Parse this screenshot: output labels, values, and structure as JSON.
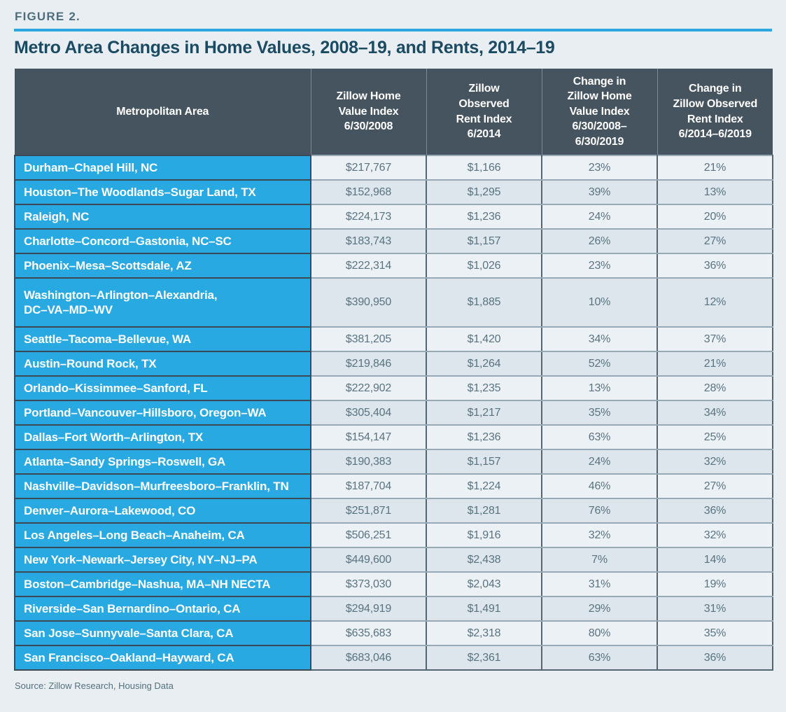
{
  "figure": {
    "label": "FIGURE 2.",
    "title": "Metro Area Changes in Home Values, 2008–19, and Rents, 2014–19"
  },
  "source": "Source: Zillow Research, Housing Data",
  "colors": {
    "accent_blue": "#29a9e1",
    "header_slate": "#46545f",
    "rule_blue": "#2ca7e0",
    "title_navy": "#1b4a63",
    "page_background": "#e9eef2",
    "row_light": "#ebf1f5",
    "row_dark": "#dce6ec",
    "value_text": "#5a7380"
  },
  "chart_data": {
    "type": "table",
    "title": "Metro Area Changes in Home Values, 2008–19, and Rents, 2014–19",
    "columns": [
      "Metropolitan Area",
      "Zillow Home\nValue Index\n6/30/2008",
      "Zillow\nObserved\nRent Index\n6/2014",
      "Change in\nZillow Home\nValue Index\n6/30/2008–\n6/30/2019",
      "Change in\nZillow Observed\nRent Index\n6/2014–6/2019"
    ],
    "rows": [
      [
        "Durham–Chapel Hill, NC",
        "$217,767",
        "$1,166",
        "23%",
        "21%"
      ],
      [
        "Houston–The Woodlands–Sugar Land, TX",
        "$152,968",
        "$1,295",
        "39%",
        "13%"
      ],
      [
        "Raleigh, NC",
        "$224,173",
        "$1,236",
        "24%",
        "20%"
      ],
      [
        "Charlotte–Concord–Gastonia, NC–SC",
        "$183,743",
        "$1,157",
        "26%",
        "27%"
      ],
      [
        "Phoenix–Mesa–Scottsdale, AZ",
        "$222,314",
        "$1,026",
        "23%",
        "36%"
      ],
      [
        "Washington–Arlington–Alexandria,\nDC–VA–MD–WV",
        "$390,950",
        "$1,885",
        "10%",
        "12%"
      ],
      [
        "Seattle–Tacoma–Bellevue, WA",
        "$381,205",
        "$1,420",
        "34%",
        "37%"
      ],
      [
        "Austin–Round Rock, TX",
        "$219,846",
        "$1,264",
        "52%",
        "21%"
      ],
      [
        "Orlando–Kissimmee–Sanford, FL",
        "$222,902",
        "$1,235",
        "13%",
        "28%"
      ],
      [
        "Portland–Vancouver–Hillsboro, Oregon–WA",
        "$305,404",
        "$1,217",
        "35%",
        "34%"
      ],
      [
        "Dallas–Fort Worth–Arlington, TX",
        "$154,147",
        "$1,236",
        "63%",
        "25%"
      ],
      [
        "Atlanta–Sandy Springs–Roswell, GA",
        "$190,383",
        "$1,157",
        "24%",
        "32%"
      ],
      [
        "Nashville–Davidson–Murfreesboro–Franklin, TN",
        "$187,704",
        "$1,224",
        "46%",
        "27%"
      ],
      [
        "Denver–Aurora–Lakewood, CO",
        "$251,871",
        "$1,281",
        "76%",
        "36%"
      ],
      [
        "Los Angeles–Long Beach–Anaheim, CA",
        "$506,251",
        "$1,916",
        "32%",
        "32%"
      ],
      [
        "New York–Newark–Jersey City, NY–NJ–PA",
        "$449,600",
        "$2,438",
        "7%",
        "14%"
      ],
      [
        "Boston–Cambridge–Nashua, MA–NH NECTA",
        "$373,030",
        "$2,043",
        "31%",
        "19%"
      ],
      [
        "Riverside–San Bernardino–Ontario, CA",
        "$294,919",
        "$1,491",
        "29%",
        "31%"
      ],
      [
        "San Jose–Sunnyvale–Santa Clara, CA",
        "$635,683",
        "$2,318",
        "80%",
        "35%"
      ],
      [
        "San Francisco–Oakland–Hayward, CA",
        "$683,046",
        "$2,361",
        "63%",
        "36%"
      ]
    ]
  }
}
